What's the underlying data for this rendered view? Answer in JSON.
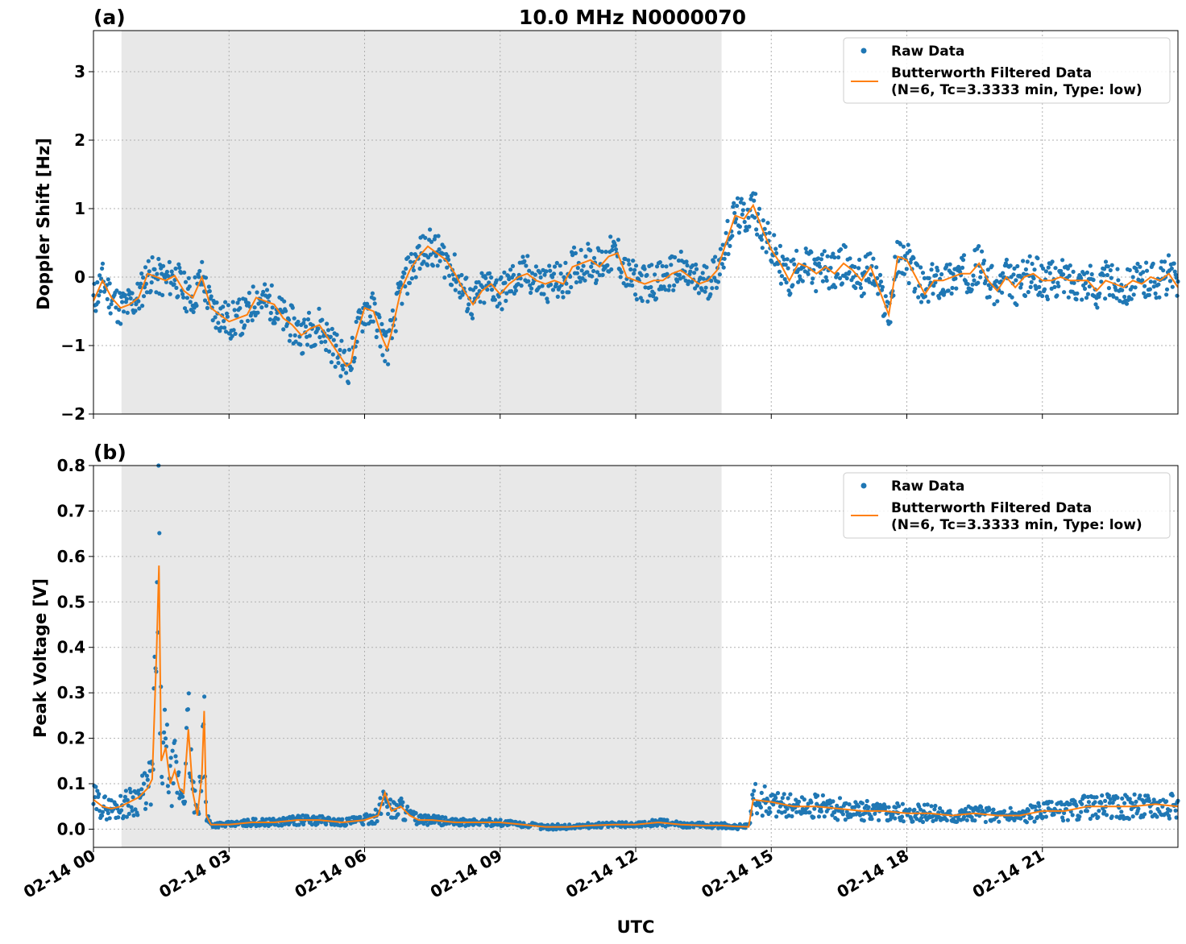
{
  "figure": {
    "title": "10.0 MHz N0000070",
    "xlabel": "UTC",
    "x_ticks": [
      "02-14 00",
      "02-14 03",
      "02-14 06",
      "02-14 09",
      "02-14 12",
      "02-14 15",
      "02-14 18",
      "02-14 21"
    ],
    "colors": {
      "raw": "#1f77b4",
      "filtered": "#ff7f0e",
      "shade": "#e8e8e8"
    }
  },
  "chart_data": [
    {
      "type": "scatter",
      "panel_label": "(a)",
      "ylabel": "Doppler Shift [Hz]",
      "xlim": [
        0,
        24
      ],
      "ylim": [
        -2.0,
        3.6
      ],
      "y_ticks": [
        -2,
        -1,
        0,
        1,
        2,
        3
      ],
      "y_tick_labels": [
        "−2",
        "−1",
        "0",
        "1",
        "2",
        "3"
      ],
      "shaded_interval": [
        0.62,
        13.9
      ],
      "grid": true,
      "legend_position": "top-right",
      "legend": [
        "Raw Data",
        "Butterworth Filtered Data",
        "(N=6, Tc=3.3333 min, Type: low)"
      ],
      "series": [
        {
          "name": "Butterworth Filtered Data",
          "kind": "line",
          "x": [
            0,
            0.2,
            0.4,
            0.6,
            0.8,
            1.0,
            1.2,
            1.4,
            1.6,
            1.8,
            2.0,
            2.2,
            2.4,
            2.6,
            2.8,
            3.0,
            3.2,
            3.4,
            3.6,
            3.8,
            4.0,
            4.2,
            4.4,
            4.6,
            4.8,
            5.0,
            5.2,
            5.4,
            5.6,
            5.7,
            5.8,
            6.0,
            6.2,
            6.4,
            6.5,
            6.6,
            6.8,
            7.0,
            7.2,
            7.4,
            7.6,
            7.8,
            8.0,
            8.2,
            8.4,
            8.6,
            8.8,
            9.0,
            9.2,
            9.4,
            9.6,
            9.8,
            10.0,
            10.2,
            10.4,
            10.6,
            10.8,
            11.0,
            11.2,
            11.4,
            11.6,
            11.8,
            12.0,
            12.2,
            12.4,
            12.6,
            12.8,
            13.0,
            13.2,
            13.4,
            13.6,
            13.8,
            14.0,
            14.2,
            14.4,
            14.6,
            14.8,
            15.0,
            15.2,
            15.4,
            15.6,
            15.8,
            16.0,
            16.2,
            16.4,
            16.6,
            16.8,
            17.0,
            17.2,
            17.4,
            17.6,
            17.8,
            18.0,
            18.2,
            18.4,
            18.6,
            18.8,
            19.0,
            19.2,
            19.4,
            19.6,
            19.8,
            20.0,
            20.2,
            20.4,
            20.6,
            20.8,
            21.0,
            21.2,
            21.4,
            21.6,
            21.8,
            22.0,
            22.2,
            22.4,
            22.6,
            22.8,
            23.0,
            23.2,
            23.4,
            23.6,
            23.8,
            24.0
          ],
          "y": [
            -0.35,
            -0.05,
            -0.3,
            -0.45,
            -0.4,
            -0.3,
            0.05,
            0.0,
            -0.05,
            0.02,
            -0.2,
            -0.3,
            0.0,
            -0.45,
            -0.55,
            -0.65,
            -0.6,
            -0.55,
            -0.3,
            -0.35,
            -0.4,
            -0.6,
            -0.7,
            -0.85,
            -0.75,
            -0.7,
            -0.9,
            -1.1,
            -1.3,
            -1.25,
            -0.9,
            -0.45,
            -0.5,
            -0.9,
            -1.05,
            -0.8,
            -0.2,
            0.1,
            0.3,
            0.45,
            0.35,
            0.25,
            0.05,
            -0.2,
            -0.4,
            -0.2,
            -0.1,
            -0.25,
            -0.1,
            0.0,
            0.05,
            -0.05,
            -0.1,
            -0.05,
            -0.1,
            0.15,
            0.2,
            0.25,
            0.15,
            0.3,
            0.35,
            0.0,
            -0.05,
            -0.1,
            -0.05,
            -0.05,
            0.05,
            0.1,
            0.0,
            -0.1,
            -0.05,
            0.1,
            0.5,
            0.9,
            0.85,
            1.05,
            0.7,
            0.4,
            0.2,
            -0.05,
            0.2,
            0.15,
            0.05,
            0.15,
            0.05,
            0.2,
            0.1,
            -0.05,
            0.15,
            -0.2,
            -0.55,
            0.3,
            0.25,
            0.0,
            -0.25,
            -0.05,
            -0.05,
            0.0,
            0.05,
            0.05,
            0.2,
            -0.05,
            -0.2,
            0.0,
            -0.15,
            0.0,
            0.05,
            -0.05,
            -0.05,
            0.0,
            -0.05,
            -0.05,
            -0.05,
            -0.2,
            -0.05,
            -0.1,
            -0.15,
            -0.05,
            -0.1,
            0.0,
            -0.05,
            0.05,
            -0.15
          ]
        }
      ]
    },
    {
      "type": "scatter",
      "panel_label": "(b)",
      "ylabel": "Peak Voltage [V]",
      "xlim": [
        0,
        24
      ],
      "ylim": [
        -0.04,
        0.8
      ],
      "y_ticks": [
        0.0,
        0.1,
        0.2,
        0.3,
        0.4,
        0.5,
        0.6,
        0.7,
        0.8
      ],
      "y_tick_labels": [
        "0.0",
        "0.1",
        "0.2",
        "0.3",
        "0.4",
        "0.5",
        "0.6",
        "0.7",
        "0.8"
      ],
      "shaded_interval": [
        0.62,
        13.9
      ],
      "grid": true,
      "legend_position": "top-right",
      "legend": [
        "Raw Data",
        "Butterworth Filtered Data",
        "(N=6, Tc=3.3333 min, Type: low)"
      ],
      "series": [
        {
          "name": "Butterworth Filtered Data",
          "kind": "line",
          "x": [
            0,
            0.2,
            0.4,
            0.6,
            0.8,
            1.0,
            1.2,
            1.3,
            1.4,
            1.45,
            1.5,
            1.6,
            1.7,
            1.8,
            1.9,
            2.0,
            2.1,
            2.2,
            2.3,
            2.4,
            2.45,
            2.5,
            2.6,
            3.0,
            3.5,
            4.0,
            4.5,
            5.0,
            5.5,
            6.0,
            6.3,
            6.45,
            6.6,
            6.8,
            7.0,
            7.2,
            7.5,
            8.0,
            8.5,
            9.0,
            9.5,
            10.0,
            10.5,
            11.0,
            11.5,
            12.0,
            12.5,
            13.0,
            13.5,
            13.9,
            14.2,
            14.5,
            14.6,
            15.0,
            15.5,
            16.0,
            16.5,
            17.0,
            17.5,
            18.0,
            18.5,
            19.0,
            19.5,
            20.0,
            20.5,
            21.0,
            21.5,
            22.0,
            22.5,
            23.0,
            23.5,
            24.0
          ],
          "y": [
            0.065,
            0.05,
            0.045,
            0.05,
            0.06,
            0.07,
            0.09,
            0.11,
            0.4,
            0.58,
            0.15,
            0.18,
            0.1,
            0.13,
            0.09,
            0.08,
            0.22,
            0.08,
            0.03,
            0.12,
            0.26,
            0.03,
            0.01,
            0.01,
            0.015,
            0.015,
            0.02,
            0.02,
            0.015,
            0.02,
            0.03,
            0.08,
            0.04,
            0.05,
            0.03,
            0.02,
            0.02,
            0.015,
            0.015,
            0.015,
            0.01,
            0.005,
            0.005,
            0.008,
            0.01,
            0.01,
            0.015,
            0.01,
            0.008,
            0.008,
            0.006,
            0.005,
            0.065,
            0.06,
            0.05,
            0.05,
            0.045,
            0.04,
            0.04,
            0.035,
            0.035,
            0.03,
            0.035,
            0.03,
            0.03,
            0.04,
            0.04,
            0.05,
            0.05,
            0.05,
            0.055,
            0.05
          ]
        }
      ]
    }
  ]
}
